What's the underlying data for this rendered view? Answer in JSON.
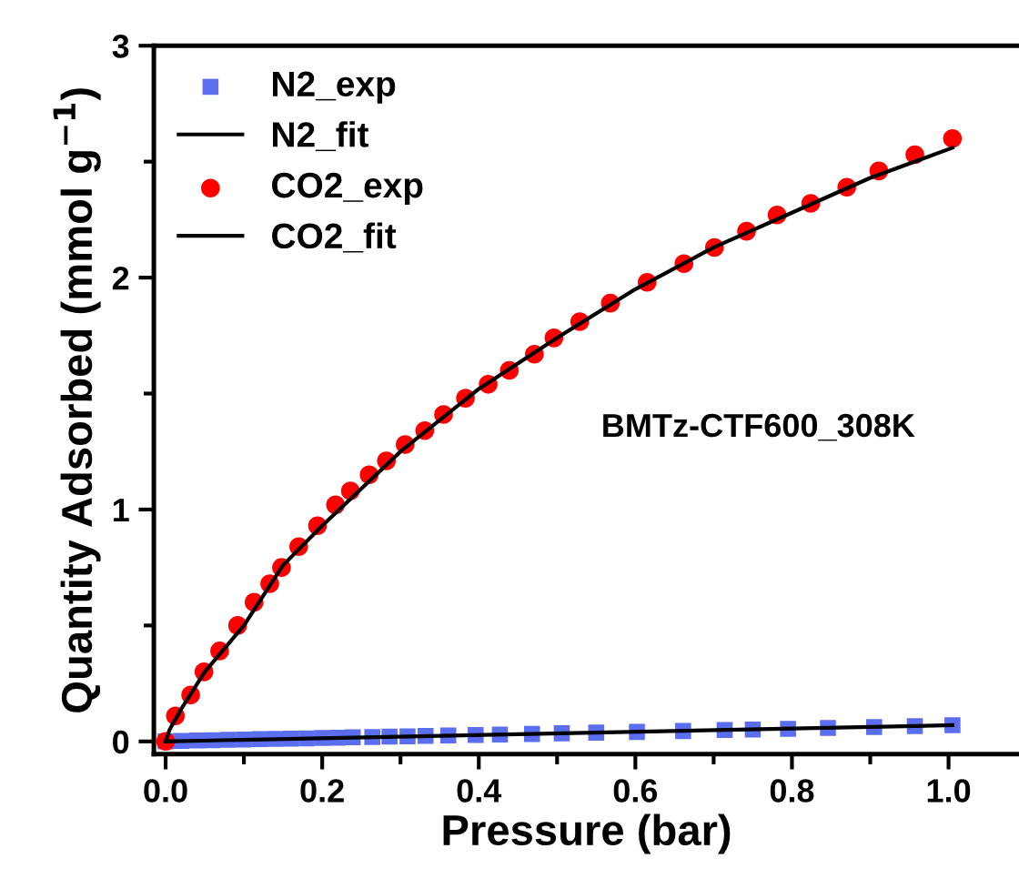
{
  "chart_data": {
    "type": "scatter",
    "xlabel": "Pressure (bar)",
    "ylabel": "Quantity Adsorbed (mmol g$^{−1}$)",
    "annotations": [
      "BMTz-CTF600_308K"
    ],
    "xlim": [
      -0.015,
      1.09
    ],
    "ylim": [
      -0.055,
      3
    ],
    "xticks": [
      {
        "value": 0,
        "label": "0.0"
      },
      {
        "value": 0.2,
        "label": "0.2"
      },
      {
        "value": 0.4,
        "label": "0.4"
      },
      {
        "value": 0.6,
        "label": "0.6"
      },
      {
        "value": 0.8,
        "label": "0.8"
      },
      {
        "value": 1,
        "label": "1.0"
      }
    ],
    "yticks": [
      0,
      1,
      2,
      3
    ],
    "grid": false,
    "legend": "top left",
    "series": [
      {
        "name": "N2_exp",
        "marker": "square",
        "color": "#5b6ef0",
        "x": [
          0,
          0.02,
          0.04,
          0.06,
          0.08,
          0.1,
          0.12,
          0.14,
          0.16,
          0.18,
          0.2,
          0.22,
          0.239,
          0.264,
          0.286,
          0.309,
          0.332,
          0.361,
          0.396,
          0.427,
          0.468,
          0.506,
          0.55,
          0.602,
          0.661,
          0.714,
          0.75,
          0.795,
          0.846,
          0.905,
          0.957,
          1.005
        ],
        "values": [
          0,
          0.002,
          0.004,
          0.005,
          0.007,
          0.008,
          0.01,
          0.011,
          0.012,
          0.013,
          0.015,
          0.016,
          0.018,
          0.019,
          0.021,
          0.022,
          0.024,
          0.026,
          0.028,
          0.03,
          0.032,
          0.035,
          0.038,
          0.041,
          0.045,
          0.049,
          0.051,
          0.054,
          0.058,
          0.062,
          0.066,
          0.07
        ]
      },
      {
        "name": "N2_fit",
        "type": "line",
        "color": "#000000",
        "line_style": "solid",
        "x": [
          0,
          1.005
        ],
        "values": [
          0,
          0.07
        ]
      },
      {
        "name": "CO2_exp",
        "marker": "circle",
        "color": "#ff0000",
        "x": [
          0,
          0.0125,
          0.032,
          0.049,
          0.069,
          0.092,
          0.113,
          0.133,
          0.148,
          0.17,
          0.194,
          0.217,
          0.236,
          0.26,
          0.282,
          0.306,
          0.331,
          0.355,
          0.383,
          0.412,
          0.439,
          0.471,
          0.496,
          0.529,
          0.568,
          0.615,
          0.662,
          0.701,
          0.742,
          0.781,
          0.824,
          0.87,
          0.911,
          0.957,
          1.005
        ],
        "values": [
          0,
          0.11,
          0.2,
          0.3,
          0.39,
          0.5,
          0.6,
          0.68,
          0.75,
          0.84,
          0.93,
          1.02,
          1.08,
          1.15,
          1.21,
          1.28,
          1.34,
          1.41,
          1.48,
          1.54,
          1.6,
          1.67,
          1.74,
          1.81,
          1.89,
          1.98,
          2.06,
          2.13,
          2.2,
          2.27,
          2.32,
          2.39,
          2.46,
          2.53,
          2.6
        ]
      },
      {
        "name": "CO2_fit",
        "type": "line",
        "color": "#000000",
        "line_style": "solid",
        "x": [
          0,
          0.005,
          0.02,
          0.05,
          0.1,
          0.15,
          0.2,
          0.3,
          0.4,
          0.5,
          0.6,
          0.7,
          0.8,
          0.9,
          1.005
        ],
        "values": [
          0,
          0.05,
          0.14,
          0.3,
          0.5,
          0.76,
          0.93,
          1.25,
          1.52,
          1.74,
          1.95,
          2.13,
          2.28,
          2.43,
          2.56
        ]
      }
    ]
  }
}
